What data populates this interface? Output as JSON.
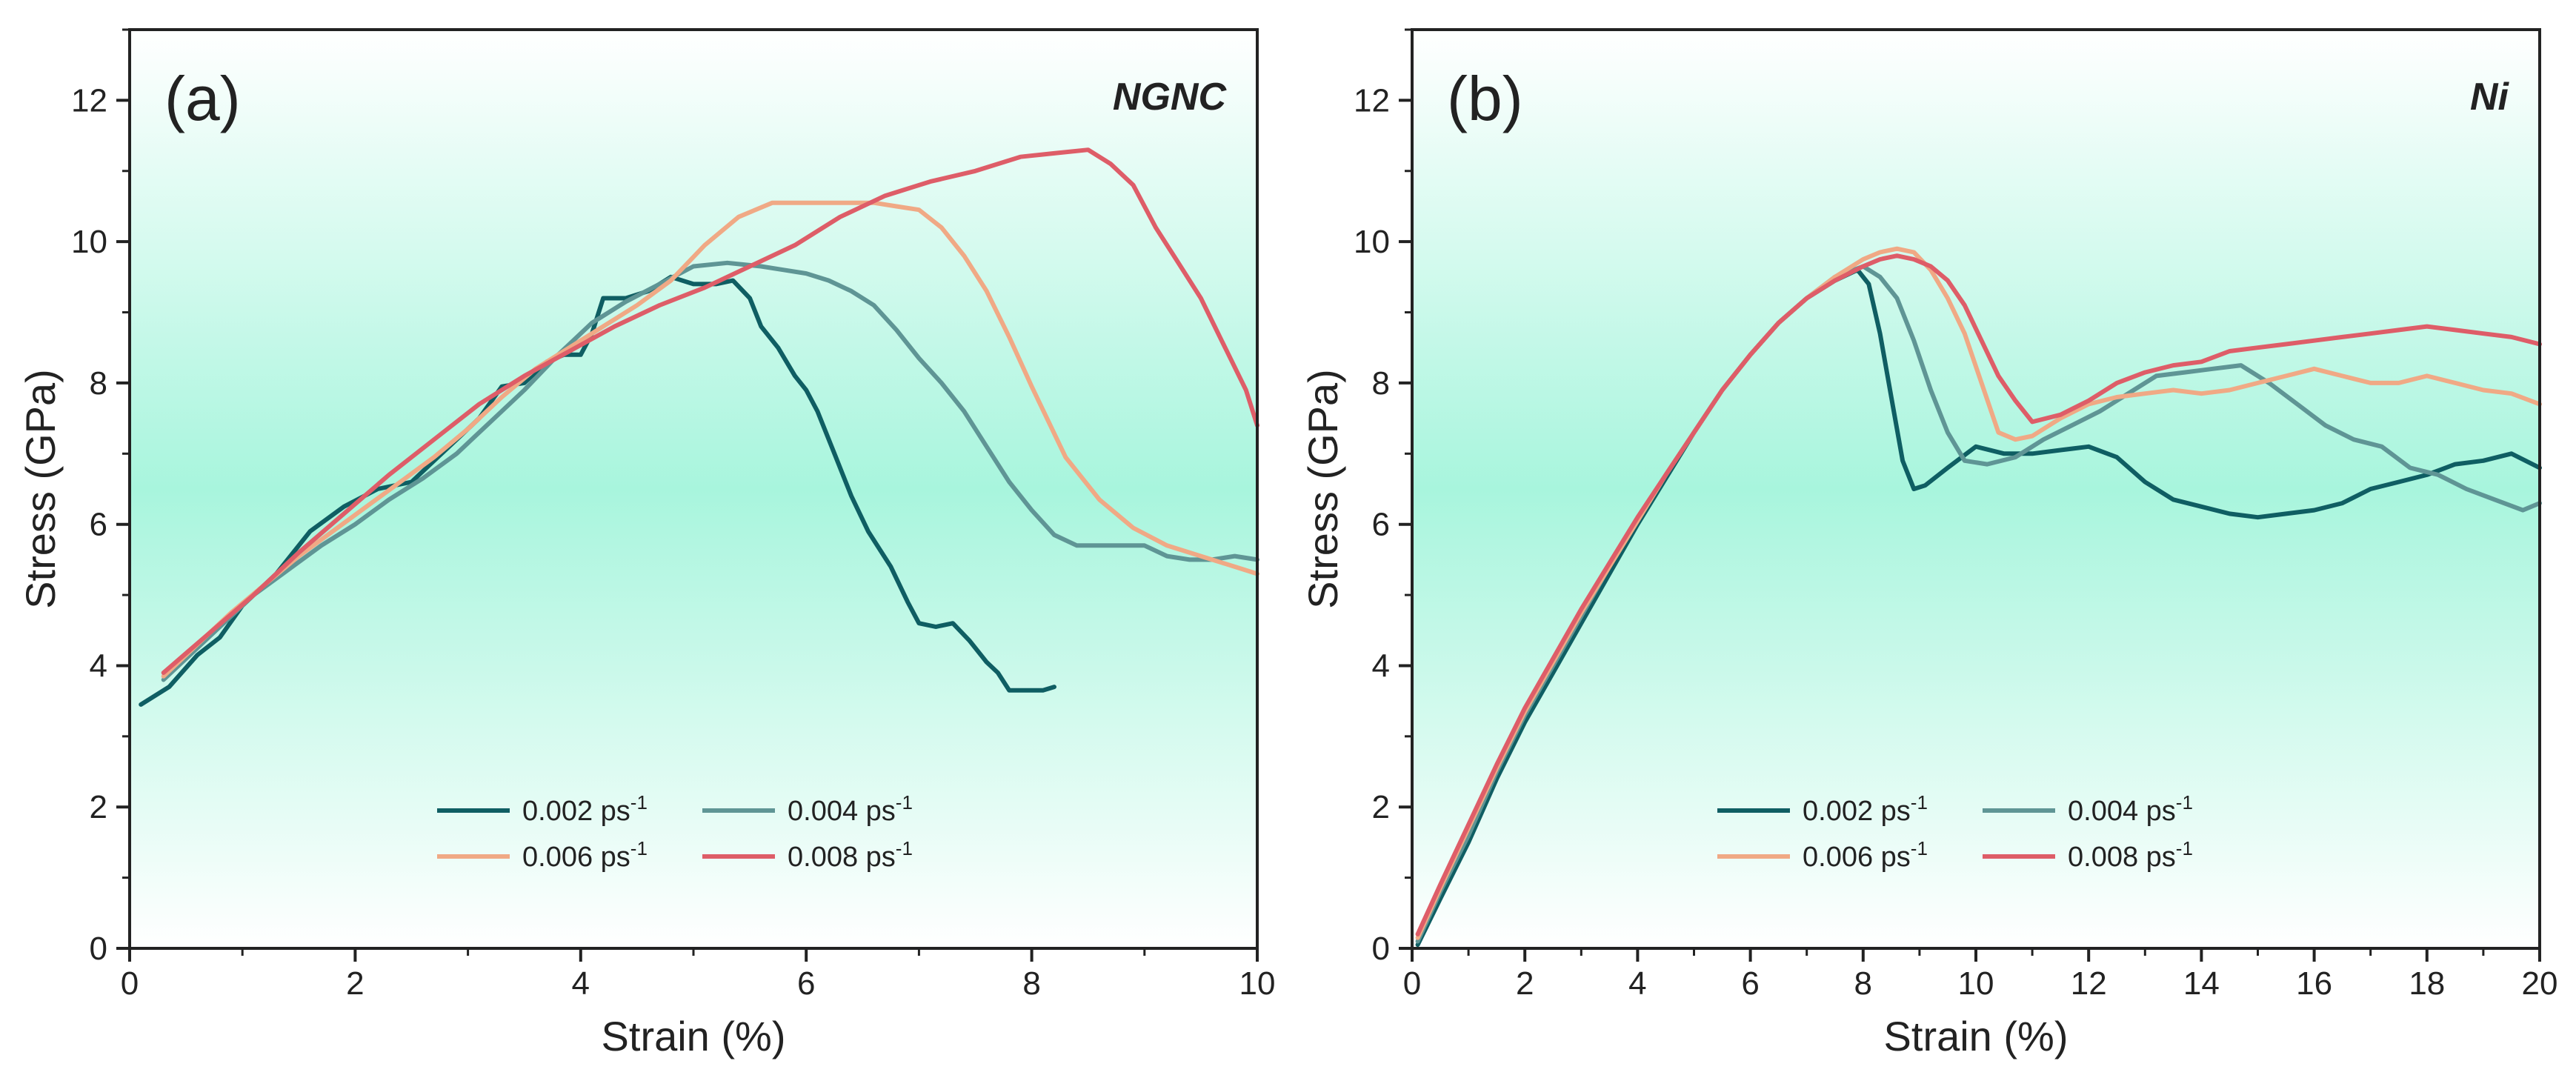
{
  "colors": {
    "s0002": "#0f5e63",
    "s0004": "#5f9595",
    "s0006": "#f0a985",
    "s0008": "#de5d68",
    "tag": "#3dc8c2",
    "bg_mid": "#a8f5dd",
    "bg_edge": "#ffffff"
  },
  "chart_data": [
    {
      "type": "line",
      "panel_label": "(a)",
      "tag": "NGNC",
      "xlabel": "Strain (%)",
      "ylabel": "Stress (GPa)",
      "xlim": [
        0,
        10
      ],
      "ylim": [
        0,
        13
      ],
      "xticks": [
        0,
        2,
        4,
        6,
        8,
        10
      ],
      "yticks": [
        0,
        2,
        4,
        6,
        8,
        10,
        12
      ],
      "xtick_labels": [
        "0",
        "2",
        "4",
        "6",
        "8",
        "10"
      ],
      "ytick_labels": [
        "0",
        "2",
        "4",
        "6",
        "8",
        "10",
        "12"
      ],
      "legend": {
        "position": "bottom-center",
        "items": [
          {
            "base": "0.002 ps",
            "sup": "-1"
          },
          {
            "base": "0.004 ps",
            "sup": "-1"
          },
          {
            "base": "0.006 ps",
            "sup": "-1"
          },
          {
            "base": "0.008 ps",
            "sup": "-1"
          }
        ]
      },
      "series": [
        {
          "name": "0.002 ps-1",
          "color_key": "s0002",
          "x": [
            0.1,
            0.35,
            0.6,
            0.8,
            1.0,
            1.3,
            1.6,
            1.9,
            2.2,
            2.5,
            2.7,
            2.9,
            3.1,
            3.3,
            3.5,
            3.7,
            3.85,
            4.0,
            4.1,
            4.2,
            4.4,
            4.6,
            4.8,
            5.0,
            5.2,
            5.35,
            5.5,
            5.6,
            5.75,
            5.9,
            6.0,
            6.1,
            6.25,
            6.4,
            6.55,
            6.75,
            6.9,
            7.0,
            7.15,
            7.3,
            7.45,
            7.6,
            7.7,
            7.8,
            7.95,
            8.1,
            8.2
          ],
          "y": [
            3.45,
            3.7,
            4.15,
            4.4,
            4.85,
            5.3,
            5.9,
            6.25,
            6.5,
            6.6,
            6.9,
            7.2,
            7.5,
            7.95,
            8.0,
            8.3,
            8.4,
            8.4,
            8.7,
            9.2,
            9.2,
            9.3,
            9.5,
            9.4,
            9.4,
            9.45,
            9.2,
            8.8,
            8.5,
            8.1,
            7.9,
            7.6,
            7.0,
            6.4,
            5.9,
            5.4,
            4.9,
            4.6,
            4.55,
            4.6,
            4.35,
            4.05,
            3.9,
            3.65,
            3.65,
            3.65,
            3.7
          ]
        },
        {
          "name": "0.004 ps-1",
          "color_key": "s0004",
          "x": [
            0.3,
            0.5,
            0.8,
            1.1,
            1.4,
            1.7,
            2.0,
            2.3,
            2.6,
            2.9,
            3.2,
            3.5,
            3.8,
            4.1,
            4.4,
            4.7,
            5.0,
            5.3,
            5.6,
            5.8,
            6.0,
            6.2,
            6.4,
            6.6,
            6.8,
            7.0,
            7.2,
            7.4,
            7.6,
            7.8,
            8.0,
            8.2,
            8.4,
            8.6,
            8.8,
            9.0,
            9.2,
            9.4,
            9.6,
            9.8,
            10.0
          ],
          "y": [
            3.8,
            4.1,
            4.55,
            5.0,
            5.35,
            5.7,
            6.0,
            6.35,
            6.65,
            7.0,
            7.45,
            7.9,
            8.4,
            8.85,
            9.15,
            9.4,
            9.65,
            9.7,
            9.65,
            9.6,
            9.55,
            9.45,
            9.3,
            9.1,
            8.75,
            8.35,
            8.0,
            7.6,
            7.1,
            6.6,
            6.2,
            5.85,
            5.7,
            5.7,
            5.7,
            5.7,
            5.55,
            5.5,
            5.5,
            5.55,
            5.5
          ]
        },
        {
          "name": "0.006 ps-1",
          "color_key": "s0006",
          "x": [
            0.3,
            0.6,
            0.9,
            1.2,
            1.5,
            1.8,
            2.1,
            2.4,
            2.7,
            3.0,
            3.3,
            3.6,
            3.9,
            4.2,
            4.5,
            4.8,
            5.1,
            5.4,
            5.7,
            6.0,
            6.3,
            6.6,
            6.8,
            7.0,
            7.2,
            7.4,
            7.6,
            7.8,
            8.0,
            8.3,
            8.6,
            8.9,
            9.2,
            9.5,
            9.8,
            10.0
          ],
          "y": [
            3.85,
            4.3,
            4.75,
            5.15,
            5.55,
            5.9,
            6.25,
            6.6,
            6.95,
            7.35,
            7.8,
            8.2,
            8.5,
            8.8,
            9.1,
            9.45,
            9.95,
            10.35,
            10.55,
            10.55,
            10.55,
            10.55,
            10.5,
            10.45,
            10.2,
            9.8,
            9.3,
            8.65,
            7.95,
            6.95,
            6.35,
            5.95,
            5.7,
            5.55,
            5.4,
            5.3
          ]
        },
        {
          "name": "0.008 ps-1",
          "color_key": "s0008",
          "x": [
            0.3,
            0.7,
            1.1,
            1.5,
            1.9,
            2.3,
            2.7,
            3.1,
            3.5,
            3.9,
            4.3,
            4.7,
            5.1,
            5.5,
            5.9,
            6.3,
            6.7,
            7.1,
            7.5,
            7.9,
            8.2,
            8.5,
            8.7,
            8.9,
            9.1,
            9.3,
            9.5,
            9.7,
            9.9,
            10.0
          ],
          "y": [
            3.9,
            4.45,
            5.0,
            5.6,
            6.15,
            6.7,
            7.2,
            7.7,
            8.1,
            8.45,
            8.8,
            9.1,
            9.35,
            9.65,
            9.95,
            10.35,
            10.65,
            10.85,
            11.0,
            11.2,
            11.25,
            11.3,
            11.1,
            10.8,
            10.2,
            9.7,
            9.2,
            8.55,
            7.9,
            7.4
          ]
        }
      ]
    },
    {
      "type": "line",
      "panel_label": "(b)",
      "tag": "Ni",
      "xlabel": "Strain (%)",
      "ylabel": "Stress (GPa)",
      "xlim": [
        0,
        20
      ],
      "ylim": [
        0,
        13
      ],
      "xticks": [
        0,
        2,
        4,
        6,
        8,
        10,
        12,
        14,
        16,
        18,
        20
      ],
      "yticks": [
        0,
        2,
        4,
        6,
        8,
        10,
        12
      ],
      "xtick_labels": [
        "0",
        "2",
        "4",
        "6",
        "8",
        "10",
        "12",
        "14",
        "16",
        "18",
        "20"
      ],
      "ytick_labels": [
        "0",
        "2",
        "4",
        "6",
        "8",
        "10",
        "12"
      ],
      "legend": {
        "position": "bottom-center",
        "items": [
          {
            "base": "0.002 ps",
            "sup": "-1"
          },
          {
            "base": "0.004 ps",
            "sup": "-1"
          },
          {
            "base": "0.006 ps",
            "sup": "-1"
          },
          {
            "base": "0.008 ps",
            "sup": "-1"
          }
        ]
      },
      "series": [
        {
          "name": "0.002 ps-1",
          "color_key": "s0002",
          "x": [
            0.1,
            0.5,
            1.0,
            1.5,
            2.0,
            2.5,
            3.0,
            3.5,
            4.0,
            4.5,
            5.0,
            5.5,
            6.0,
            6.5,
            7.0,
            7.5,
            7.9,
            8.1,
            8.3,
            8.5,
            8.7,
            8.9,
            9.1,
            9.5,
            10.0,
            10.5,
            11.0,
            11.5,
            12.0,
            12.5,
            13.0,
            13.5,
            14.0,
            14.5,
            15.0,
            15.5,
            16.0,
            16.5,
            17.0,
            17.5,
            18.0,
            18.5,
            19.0,
            19.5,
            20.0
          ],
          "y": [
            0.05,
            0.7,
            1.5,
            2.4,
            3.2,
            3.9,
            4.6,
            5.3,
            6.0,
            6.65,
            7.3,
            7.9,
            8.4,
            8.85,
            9.2,
            9.45,
            9.6,
            9.4,
            8.7,
            7.8,
            6.9,
            6.5,
            6.55,
            6.8,
            7.1,
            7.0,
            7.0,
            7.05,
            7.1,
            6.95,
            6.6,
            6.35,
            6.25,
            6.15,
            6.1,
            6.15,
            6.2,
            6.3,
            6.5,
            6.6,
            6.7,
            6.85,
            6.9,
            7.0,
            6.8
          ]
        },
        {
          "name": "0.004 ps-1",
          "color_key": "s0004",
          "x": [
            0.1,
            0.5,
            1.0,
            1.5,
            2.0,
            2.5,
            3.0,
            3.5,
            4.0,
            4.5,
            5.0,
            5.5,
            6.0,
            6.5,
            7.0,
            7.5,
            8.0,
            8.3,
            8.6,
            8.9,
            9.2,
            9.5,
            9.8,
            10.2,
            10.7,
            11.2,
            11.7,
            12.2,
            12.7,
            13.2,
            13.7,
            14.2,
            14.7,
            15.2,
            15.7,
            16.2,
            16.7,
            17.2,
            17.7,
            18.2,
            18.7,
            19.2,
            19.7,
            20.0
          ],
          "y": [
            0.1,
            0.8,
            1.6,
            2.5,
            3.3,
            4.0,
            4.7,
            5.4,
            6.05,
            6.7,
            7.3,
            7.9,
            8.4,
            8.85,
            9.2,
            9.5,
            9.65,
            9.5,
            9.2,
            8.6,
            7.9,
            7.3,
            6.9,
            6.85,
            6.95,
            7.2,
            7.4,
            7.6,
            7.85,
            8.1,
            8.15,
            8.2,
            8.25,
            8.0,
            7.7,
            7.4,
            7.2,
            7.1,
            6.8,
            6.7,
            6.5,
            6.35,
            6.2,
            6.3
          ]
        },
        {
          "name": "0.006 ps-1",
          "color_key": "s0006",
          "x": [
            0.1,
            0.5,
            1.0,
            1.5,
            2.0,
            2.5,
            3.0,
            3.5,
            4.0,
            4.5,
            5.0,
            5.5,
            6.0,
            6.5,
            7.0,
            7.5,
            8.0,
            8.3,
            8.6,
            8.9,
            9.2,
            9.5,
            9.8,
            10.1,
            10.4,
            10.7,
            11.0,
            11.5,
            12.0,
            12.5,
            13.0,
            13.5,
            14.0,
            14.5,
            15.0,
            15.5,
            16.0,
            16.5,
            17.0,
            17.5,
            18.0,
            18.5,
            19.0,
            19.5,
            20.0
          ],
          "y": [
            0.15,
            0.85,
            1.7,
            2.55,
            3.35,
            4.05,
            4.75,
            5.4,
            6.05,
            6.7,
            7.3,
            7.9,
            8.4,
            8.85,
            9.2,
            9.5,
            9.75,
            9.85,
            9.9,
            9.85,
            9.6,
            9.2,
            8.7,
            8.0,
            7.3,
            7.2,
            7.25,
            7.5,
            7.7,
            7.8,
            7.85,
            7.9,
            7.85,
            7.9,
            8.0,
            8.1,
            8.2,
            8.1,
            8.0,
            8.0,
            8.1,
            8.0,
            7.9,
            7.85,
            7.7
          ]
        },
        {
          "name": "0.008 ps-1",
          "color_key": "s0008",
          "x": [
            0.1,
            0.5,
            1.0,
            1.5,
            2.0,
            2.5,
            3.0,
            3.5,
            4.0,
            4.5,
            5.0,
            5.5,
            6.0,
            6.5,
            7.0,
            7.5,
            8.0,
            8.3,
            8.6,
            8.9,
            9.2,
            9.5,
            9.8,
            10.1,
            10.4,
            10.7,
            11.0,
            11.5,
            12.0,
            12.5,
            13.0,
            13.5,
            14.0,
            14.5,
            15.0,
            15.5,
            16.0,
            16.5,
            17.0,
            17.5,
            18.0,
            18.5,
            19.0,
            19.5,
            20.0
          ],
          "y": [
            0.2,
            0.9,
            1.75,
            2.6,
            3.4,
            4.1,
            4.8,
            5.45,
            6.1,
            6.7,
            7.3,
            7.9,
            8.4,
            8.85,
            9.2,
            9.45,
            9.65,
            9.75,
            9.8,
            9.75,
            9.65,
            9.45,
            9.1,
            8.6,
            8.1,
            7.75,
            7.45,
            7.55,
            7.75,
            8.0,
            8.15,
            8.25,
            8.3,
            8.45,
            8.5,
            8.55,
            8.6,
            8.65,
            8.7,
            8.75,
            8.8,
            8.75,
            8.7,
            8.65,
            8.55
          ]
        }
      ]
    }
  ]
}
